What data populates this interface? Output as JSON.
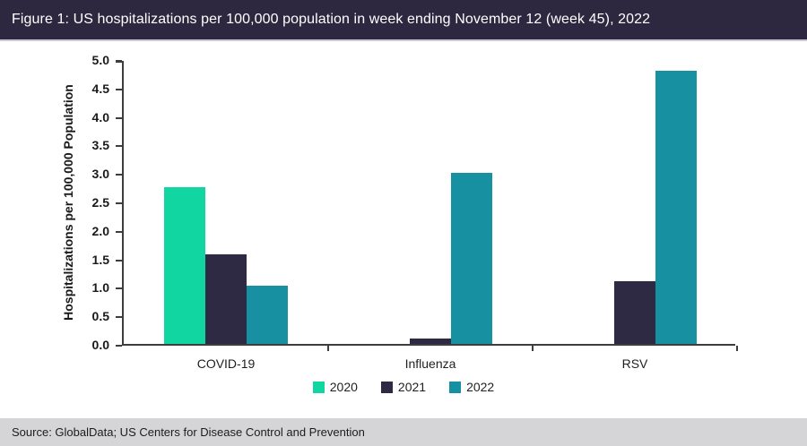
{
  "title_bar": {
    "text": "Figure 1: US hospitalizations per 100,000 population in week ending November 12 (week 45), 2022"
  },
  "footer": {
    "text": "Source: GlobalData; US Centers for Disease Control and Prevention"
  },
  "colors": {
    "title_bar_bg": "#2d2840",
    "title_bar_separator": "#cbc8d3",
    "axis": "#3d3d3d",
    "footer_bg": "#d5d5d7",
    "series_2020": "#12d6a1",
    "series_2021": "#2e2a43",
    "series_2022": "#1791a2"
  },
  "chart_data": {
    "type": "bar",
    "title": "US hospitalizations per 100,000 population in week ending November 12 (week 45), 2022",
    "categories": [
      "COVID-19",
      "Influenza",
      "RSV"
    ],
    "series": [
      {
        "name": "2020",
        "color": "#12d6a1",
        "values": [
          2.75,
          0,
          0
        ]
      },
      {
        "name": "2021",
        "color": "#2e2a43",
        "values": [
          1.58,
          0.1,
          1.1
        ]
      },
      {
        "name": "2022",
        "color": "#1791a2",
        "values": [
          1.02,
          3.0,
          4.8
        ]
      }
    ],
    "xlabel": "",
    "ylabel": "Hospitalizations per 100,000 Population",
    "ylim": [
      0,
      5
    ],
    "ytick_step": 0.5,
    "ytick_labels": [
      "0.0",
      "0.5",
      "1.0",
      "1.5",
      "2.0",
      "2.5",
      "3.0",
      "3.5",
      "4.0",
      "4.5",
      "5.0"
    ],
    "grid": false,
    "legend_position": "bottom",
    "legend_entries": [
      "2020",
      "2021",
      "2022"
    ]
  }
}
